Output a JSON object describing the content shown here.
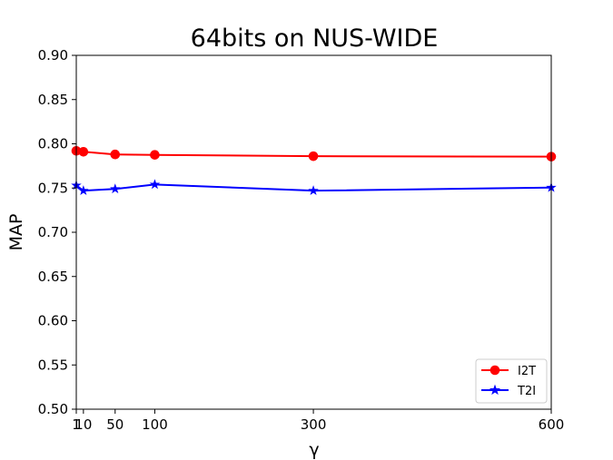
{
  "chart_data": {
    "type": "line",
    "title": "64bits on NUS-WIDE",
    "xlabel": "γ",
    "ylabel": "MAP",
    "xlim": [
      1,
      600
    ],
    "ylim": [
      0.5,
      0.9
    ],
    "x": [
      1,
      10,
      50,
      100,
      300,
      600
    ],
    "xticks": [
      1,
      10,
      50,
      100,
      300,
      600
    ],
    "xtick_labels": [
      "1",
      "10",
      "50",
      "100",
      "300",
      "600"
    ],
    "yticks": [
      0.5,
      0.55,
      0.6,
      0.65,
      0.7,
      0.75,
      0.8,
      0.85,
      0.9
    ],
    "ytick_labels": [
      "0.50",
      "0.55",
      "0.60",
      "0.65",
      "0.70",
      "0.75",
      "0.80",
      "0.85",
      "0.90"
    ],
    "grid": false,
    "legend_position": "lower-right",
    "series": [
      {
        "name": "I2T",
        "color": "#ff0000",
        "marker": "circle",
        "values": [
          0.792,
          0.791,
          0.788,
          0.7875,
          0.786,
          0.7855
        ]
      },
      {
        "name": "T2I",
        "color": "#0000ff",
        "marker": "star",
        "values": [
          0.753,
          0.747,
          0.749,
          0.754,
          0.747,
          0.7505
        ]
      }
    ]
  }
}
